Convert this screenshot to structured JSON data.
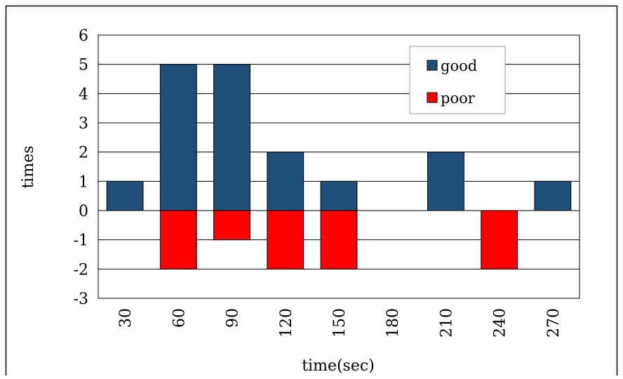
{
  "chart_data": {
    "type": "bar",
    "title": "",
    "xlabel": "time(sec)",
    "ylabel": "times",
    "categories": [
      "30",
      "60",
      "90",
      "120",
      "150",
      "180",
      "210",
      "240",
      "270"
    ],
    "series": [
      {
        "name": "good",
        "color": "#1F4E79",
        "values": [
          1,
          5,
          5,
          2,
          1,
          0,
          2,
          0,
          1
        ]
      },
      {
        "name": "poor",
        "color": "#FF0000",
        "values": [
          0,
          -2,
          -1,
          -2,
          -2,
          0,
          0,
          -2,
          0
        ]
      }
    ],
    "ylim": [
      -3,
      6
    ],
    "yticks": [
      6,
      5,
      4,
      3,
      2,
      1,
      0,
      -1,
      -2,
      -3
    ],
    "grid": true,
    "legend_position": "top-right"
  }
}
